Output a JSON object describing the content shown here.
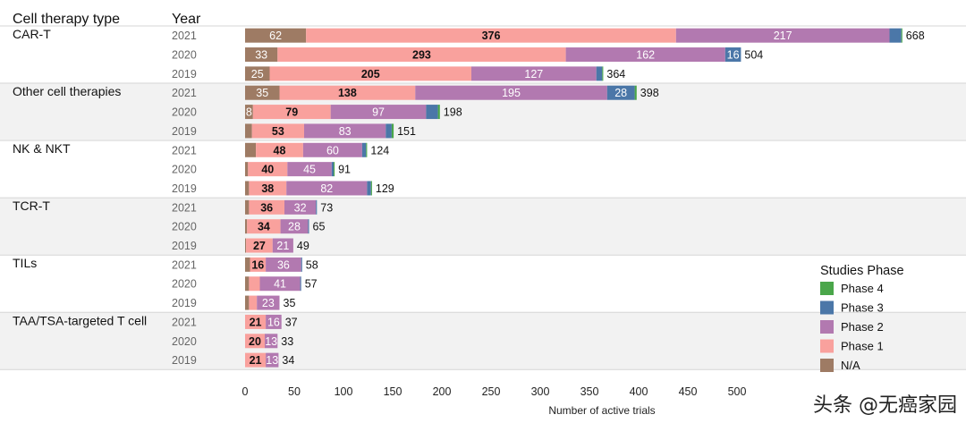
{
  "chart_data": {
    "type": "bar",
    "orientation": "horizontal",
    "stacked": true,
    "title": "",
    "xlabel": "Number of active trials",
    "ylabel": "",
    "xlim": [
      0,
      650
    ],
    "x_ticks": [
      0,
      50,
      100,
      150,
      200,
      250,
      300,
      350,
      400,
      450,
      500
    ],
    "row_header_type": "Cell therapy type",
    "row_header_year": "Year",
    "legend": {
      "title": "Studies Phase",
      "placement": "bottom-right",
      "items": [
        {
          "key": "phase4",
          "label": "Phase 4",
          "color": "#4aa64a"
        },
        {
          "key": "phase3",
          "label": "Phase 3",
          "color": "#4b77a8"
        },
        {
          "key": "phase2",
          "label": "Phase 2",
          "color": "#b279b0"
        },
        {
          "key": "phase1",
          "label": "Phase 1",
          "color": "#f9a19d"
        },
        {
          "key": "na",
          "label": "N/A",
          "color": "#9e7b64"
        }
      ]
    },
    "stack_order": [
      "na",
      "phase1",
      "phase2",
      "phase3",
      "phase4"
    ],
    "groups": [
      {
        "name": "CAR-T",
        "rows": [
          {
            "year": "2021",
            "na": 62,
            "phase1": 376,
            "phase2": 217,
            "phase3": 12,
            "phase4": 1,
            "total": 668,
            "labels": {
              "na": "62",
              "phase1": "376",
              "phase2": "217"
            }
          },
          {
            "year": "2020",
            "na": 33,
            "phase1": 293,
            "phase2": 162,
            "phase3": 16,
            "phase4": 0,
            "total": 504,
            "labels": {
              "na": "33",
              "phase1": "293",
              "phase2": "162",
              "phase3": "16"
            }
          },
          {
            "year": "2019",
            "na": 25,
            "phase1": 205,
            "phase2": 127,
            "phase3": 6,
            "phase4": 1,
            "total": 364,
            "labels": {
              "na": "25",
              "phase1": "205",
              "phase2": "127"
            }
          }
        ]
      },
      {
        "name": "Other cell therapies",
        "rows": [
          {
            "year": "2021",
            "na": 35,
            "phase1": 138,
            "phase2": 195,
            "phase3": 28,
            "phase4": 2,
            "total": 398,
            "labels": {
              "na": "35",
              "phase1": "138",
              "phase2": "195",
              "phase3": "28"
            }
          },
          {
            "year": "2020",
            "na": 8,
            "phase1": 79,
            "phase2": 97,
            "phase3": 12,
            "phase4": 2,
            "total": 198,
            "labels": {
              "na": "8",
              "phase1": "79",
              "phase2": "97"
            }
          },
          {
            "year": "2019",
            "na": 7,
            "phase1": 53,
            "phase2": 83,
            "phase3": 6,
            "phase4": 2,
            "total": 151,
            "labels": {
              "phase1": "53",
              "phase2": "83"
            }
          }
        ]
      },
      {
        "name": "NK & NKT",
        "rows": [
          {
            "year": "2021",
            "na": 11,
            "phase1": 48,
            "phase2": 60,
            "phase3": 4,
            "phase4": 1,
            "total": 124,
            "labels": {
              "phase1": "48",
              "phase2": "60"
            }
          },
          {
            "year": "2020",
            "na": 3,
            "phase1": 40,
            "phase2": 45,
            "phase3": 2,
            "phase4": 1,
            "total": 91,
            "labels": {
              "phase1": "40",
              "phase2": "45"
            }
          },
          {
            "year": "2019",
            "na": 4,
            "phase1": 38,
            "phase2": 82,
            "phase3": 4,
            "phase4": 1,
            "total": 129,
            "labels": {
              "phase1": "38",
              "phase2": "82"
            }
          }
        ]
      },
      {
        "name": "TCR-T",
        "rows": [
          {
            "year": "2021",
            "na": 4,
            "phase1": 36,
            "phase2": 32,
            "phase3": 1,
            "phase4": 0,
            "total": 73,
            "labels": {
              "phase1": "36",
              "phase2": "32"
            }
          },
          {
            "year": "2020",
            "na": 2,
            "phase1": 34,
            "phase2": 28,
            "phase3": 1,
            "phase4": 0,
            "total": 65,
            "labels": {
              "phase1": "34",
              "phase2": "28"
            }
          },
          {
            "year": "2019",
            "na": 1,
            "phase1": 27,
            "phase2": 21,
            "phase3": 0,
            "phase4": 0,
            "total": 49,
            "labels": {
              "phase1": "27",
              "phase2": "21"
            }
          }
        ]
      },
      {
        "name": "TILs",
        "rows": [
          {
            "year": "2021",
            "na": 5,
            "phase1": 16,
            "phase2": 36,
            "phase3": 1,
            "phase4": 0,
            "total": 58,
            "labels": {
              "phase1": "16",
              "phase2": "36"
            }
          },
          {
            "year": "2020",
            "na": 4,
            "phase1": 11,
            "phase2": 41,
            "phase3": 1,
            "phase4": 0,
            "total": 57,
            "labels": {
              "phase2": "41"
            }
          },
          {
            "year": "2019",
            "na": 4,
            "phase1": 8,
            "phase2": 23,
            "phase3": 0,
            "phase4": 0,
            "total": 35,
            "labels": {
              "phase2": "23"
            }
          }
        ]
      },
      {
        "name": "TAA/TSA-targeted T cell",
        "rows": [
          {
            "year": "2021",
            "na": 0,
            "phase1": 21,
            "phase2": 16,
            "phase3": 0,
            "phase4": 0,
            "total": 37,
            "labels": {
              "phase1": "21",
              "phase2": "16"
            }
          },
          {
            "year": "2020",
            "na": 0,
            "phase1": 20,
            "phase2": 13,
            "phase3": 0,
            "phase4": 0,
            "total": 33,
            "labels": {
              "phase1": "20",
              "phase2": "13"
            }
          },
          {
            "year": "2019",
            "na": 0,
            "phase1": 21,
            "phase2": 13,
            "phase3": 0,
            "phase4": 0,
            "total": 34,
            "labels": {
              "phase1": "21",
              "phase2": "13"
            }
          }
        ]
      }
    ]
  },
  "watermark": "头条 @无癌家园"
}
